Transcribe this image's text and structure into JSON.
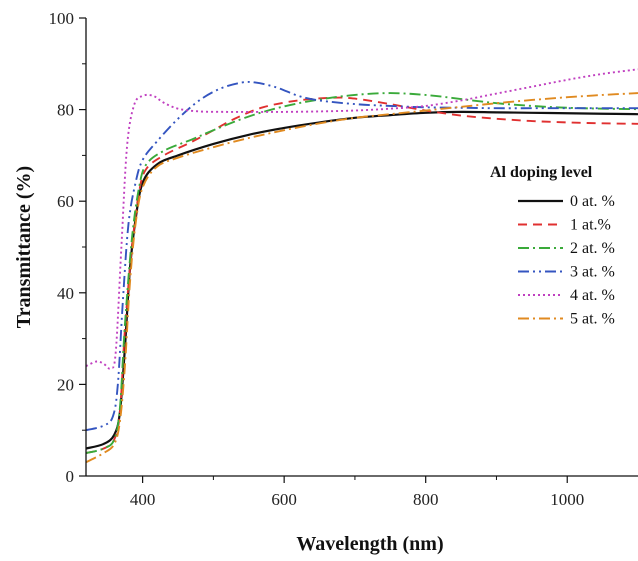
{
  "chart_data": {
    "type": "line",
    "title": "",
    "xlabel": "Wavelength (nm)",
    "ylabel": "Transmittance (%)",
    "xlim": [
      320,
      1100
    ],
    "ylim": [
      0,
      100
    ],
    "x_ticks": [
      400,
      600,
      800,
      1000
    ],
    "y_ticks": [
      0,
      20,
      40,
      60,
      80,
      100
    ],
    "grid": false,
    "legend": {
      "title": "Al doping level",
      "placement": "right"
    },
    "series": [
      {
        "name": "0 at. %",
        "color": "#111111",
        "dash": "solid",
        "points": [
          [
            320,
            6
          ],
          [
            345,
            7
          ],
          [
            360,
            9
          ],
          [
            368,
            14
          ],
          [
            375,
            28
          ],
          [
            382,
            45
          ],
          [
            390,
            56
          ],
          [
            400,
            64
          ],
          [
            420,
            68
          ],
          [
            450,
            70
          ],
          [
            500,
            72.5
          ],
          [
            550,
            74.5
          ],
          [
            600,
            76
          ],
          [
            650,
            77.2
          ],
          [
            700,
            78.2
          ],
          [
            750,
            78.8
          ],
          [
            800,
            79.3
          ],
          [
            850,
            79.5
          ],
          [
            900,
            79.4
          ],
          [
            950,
            79.3
          ],
          [
            1000,
            79.2
          ],
          [
            1050,
            79.1
          ],
          [
            1100,
            79
          ]
        ]
      },
      {
        "name": "1 at.%",
        "color": "#e03030",
        "dash": "dashed",
        "points": [
          [
            320,
            5
          ],
          [
            345,
            6
          ],
          [
            360,
            8
          ],
          [
            368,
            14
          ],
          [
            375,
            32
          ],
          [
            385,
            50
          ],
          [
            395,
            62
          ],
          [
            405,
            67
          ],
          [
            430,
            70
          ],
          [
            470,
            73
          ],
          [
            500,
            75.5
          ],
          [
            530,
            78
          ],
          [
            570,
            80.5
          ],
          [
            620,
            82
          ],
          [
            670,
            82.6
          ],
          [
            700,
            82.4
          ],
          [
            750,
            81.2
          ],
          [
            800,
            79.8
          ],
          [
            850,
            78.7
          ],
          [
            900,
            78
          ],
          [
            950,
            77.5
          ],
          [
            1000,
            77.2
          ],
          [
            1050,
            77
          ],
          [
            1100,
            76.9
          ]
        ]
      },
      {
        "name": "2 at. %",
        "color": "#3aaa3a",
        "dash": "dashdot",
        "points": [
          [
            320,
            5
          ],
          [
            345,
            6
          ],
          [
            360,
            8
          ],
          [
            368,
            15
          ],
          [
            375,
            33
          ],
          [
            385,
            52
          ],
          [
            395,
            63
          ],
          [
            405,
            68
          ],
          [
            430,
            71
          ],
          [
            470,
            73.5
          ],
          [
            500,
            75.5
          ],
          [
            550,
            78.5
          ],
          [
            600,
            80.7
          ],
          [
            650,
            82.2
          ],
          [
            700,
            83.2
          ],
          [
            750,
            83.6
          ],
          [
            800,
            83.2
          ],
          [
            850,
            82.3
          ],
          [
            900,
            81.4
          ],
          [
            950,
            80.8
          ],
          [
            1000,
            80.4
          ],
          [
            1050,
            80.2
          ],
          [
            1100,
            80.1
          ]
        ]
      },
      {
        "name": "3 at. %",
        "color": "#3455c0",
        "dash": "dashdotdot",
        "points": [
          [
            320,
            10
          ],
          [
            345,
            11
          ],
          [
            358,
            13
          ],
          [
            365,
            20
          ],
          [
            372,
            38
          ],
          [
            380,
            55
          ],
          [
            390,
            64
          ],
          [
            400,
            69
          ],
          [
            420,
            73
          ],
          [
            450,
            78
          ],
          [
            480,
            82
          ],
          [
            510,
            84.6
          ],
          [
            540,
            85.9
          ],
          [
            560,
            85.9
          ],
          [
            590,
            84.8
          ],
          [
            620,
            83
          ],
          [
            650,
            82
          ],
          [
            700,
            81.2
          ],
          [
            750,
            80.8
          ],
          [
            800,
            80.5
          ],
          [
            850,
            80.4
          ],
          [
            900,
            80.3
          ],
          [
            950,
            80.3
          ],
          [
            1000,
            80.3
          ],
          [
            1050,
            80.3
          ],
          [
            1100,
            80.3
          ]
        ]
      },
      {
        "name": "4 at. %",
        "color": "#c040c0",
        "dash": "dotted",
        "points": [
          [
            320,
            24
          ],
          [
            335,
            25
          ],
          [
            345,
            24.5
          ],
          [
            355,
            23.5
          ],
          [
            362,
            27
          ],
          [
            370,
            50
          ],
          [
            378,
            72
          ],
          [
            388,
            81
          ],
          [
            400,
            83
          ],
          [
            415,
            83
          ],
          [
            430,
            81.5
          ],
          [
            450,
            80.2
          ],
          [
            480,
            79.6
          ],
          [
            520,
            79.5
          ],
          [
            560,
            79.5
          ],
          [
            600,
            79.5
          ],
          [
            650,
            79.6
          ],
          [
            700,
            79.8
          ],
          [
            750,
            80.2
          ],
          [
            800,
            80.8
          ],
          [
            850,
            82
          ],
          [
            900,
            83.5
          ],
          [
            950,
            85
          ],
          [
            1000,
            86.5
          ],
          [
            1050,
            87.8
          ],
          [
            1100,
            88.8
          ]
        ]
      },
      {
        "name": "5 at. %",
        "color": "#e08a20",
        "dash": "dashdot",
        "points": [
          [
            320,
            3
          ],
          [
            345,
            5
          ],
          [
            360,
            7
          ],
          [
            368,
            12
          ],
          [
            375,
            24
          ],
          [
            382,
            42
          ],
          [
            390,
            55
          ],
          [
            400,
            63
          ],
          [
            420,
            67.5
          ],
          [
            450,
            69.5
          ],
          [
            500,
            71.8
          ],
          [
            550,
            73.8
          ],
          [
            600,
            75.5
          ],
          [
            650,
            77
          ],
          [
            700,
            78.2
          ],
          [
            750,
            79
          ],
          [
            800,
            79.8
          ],
          [
            850,
            80.6
          ],
          [
            900,
            81.4
          ],
          [
            950,
            82.1
          ],
          [
            1000,
            82.7
          ],
          [
            1050,
            83.2
          ],
          [
            1100,
            83.6
          ]
        ]
      }
    ]
  }
}
